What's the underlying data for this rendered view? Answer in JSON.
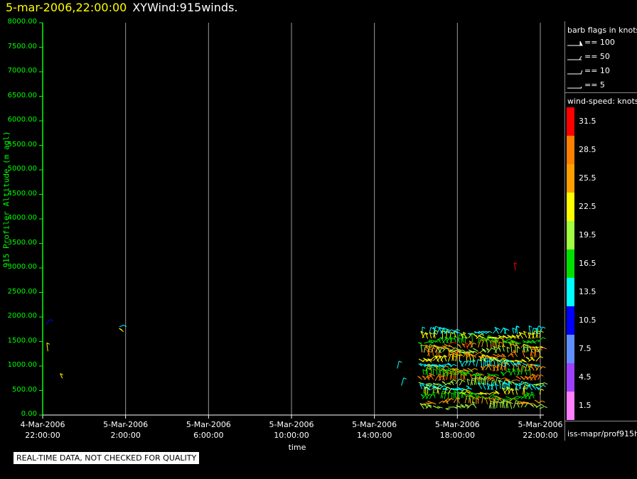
{
  "header": {
    "time": "5-mar-2006,22:00:00",
    "name": "XYWind:915winds."
  },
  "qc_notice": "REAL-TIME DATA, NOT CHECKED FOR QUALITY",
  "legend": {
    "flag_title": "barb flags in knots",
    "flags": [
      "== 100",
      "== 50",
      "== 10",
      "== 5"
    ],
    "ws_title": "wind-speed: knots",
    "source": "iss-mapr/prof915h"
  },
  "colorbar": [
    {
      "label": "31.5",
      "color": "#ff0000"
    },
    {
      "label": "28.5",
      "color": "#ff8000"
    },
    {
      "label": "25.5",
      "color": "#ffa000"
    },
    {
      "label": "22.5",
      "color": "#ffff00"
    },
    {
      "label": "19.5",
      "color": "#a0ff40"
    },
    {
      "label": "16.5",
      "color": "#00e000"
    },
    {
      "label": "13.5",
      "color": "#00ffff"
    },
    {
      "label": "10.5",
      "color": "#0000ff"
    },
    {
      "label": "7.5",
      "color": "#6090ff"
    },
    {
      "label": "4.5",
      "color": "#a040ff"
    },
    {
      "label": "1.5",
      "color": "#ff80ff"
    }
  ],
  "chart_data": {
    "type": "scatter",
    "xlabel": "time",
    "ylabel": "915 Profiler Altitude (m agl)",
    "ylim": [
      0,
      8000
    ],
    "yticks": [
      "0.00",
      "500.00",
      "1000.00",
      "1500.00",
      "2000.00",
      "2500.00",
      "3000.00",
      "3500.00",
      "4000.00",
      "4500.00",
      "5000.00",
      "5500.00",
      "6000.00",
      "6500.00",
      "7000.00",
      "7500.00",
      "8000.00"
    ],
    "xticks": [
      {
        "date": "4-Mar-2006",
        "time": "22:00:00"
      },
      {
        "date": "5-Mar-2006",
        "time": "2:00:00"
      },
      {
        "date": "5-Mar-2006",
        "time": "6:00:00"
      },
      {
        "date": "5-Mar-2006",
        "time": "10:00:00"
      },
      {
        "date": "5-Mar-2006",
        "time": "14:00:00"
      },
      {
        "date": "5-Mar-2006",
        "time": "18:00:00"
      },
      {
        "date": "5-Mar-2006",
        "time": "22:00:00"
      }
    ],
    "xlim_hours": [
      0,
      24
    ],
    "grid": "vertical",
    "segments": [
      {
        "t": 0.15,
        "alt": 1850,
        "ws": 10.5
      },
      {
        "t": 0.25,
        "alt": 1300,
        "ws": 22.5
      },
      {
        "t": 0.95,
        "alt": 750,
        "ws": 22.5
      },
      {
        "t": 3.7,
        "alt": 1800,
        "ws": 13.5
      },
      {
        "t": 3.9,
        "alt": 1700,
        "ws": 22.5
      },
      {
        "t": 17.1,
        "alt": 950,
        "ws": 13.5
      },
      {
        "t": 17.3,
        "alt": 600,
        "ws": 13.5
      },
      {
        "t": 18.6,
        "alt": 1300,
        "ws": 31.5
      },
      {
        "t": 19.6,
        "alt": 1450,
        "ws": 31.5
      },
      {
        "t": 20.5,
        "alt": 1350,
        "ws": 31.5
      },
      {
        "t": 22.8,
        "alt": 2950,
        "ws": 31.5
      }
    ],
    "cluster": {
      "t_start": 18.3,
      "t_end": 24.0,
      "alt_min": 100,
      "alt_max": 1700
    }
  }
}
